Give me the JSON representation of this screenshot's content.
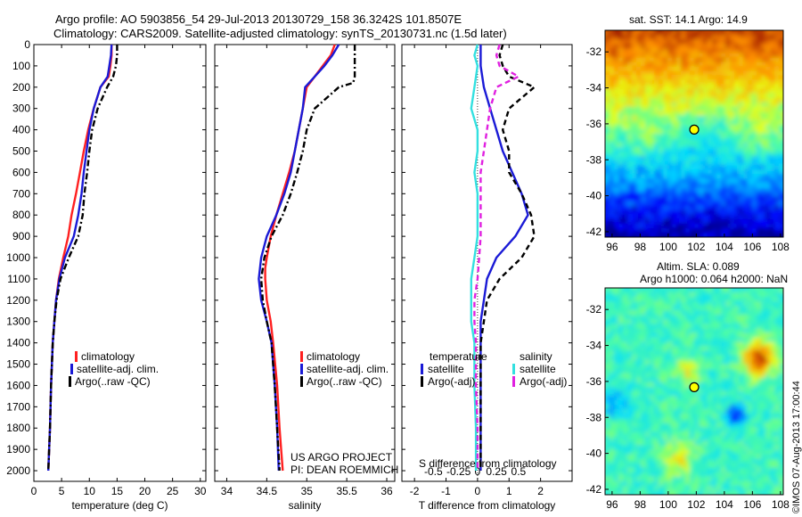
{
  "header": {
    "line1": "Argo profile: AO 5903856_54 29-Jul-2013 20130729_158 36.3242S 101.8507E",
    "line2": "Climatology: CARS2009. Satellite-adjusted climatology: synTS_20130731.nc (1.5d later)"
  },
  "colors": {
    "clim": "#ff2020",
    "sat": "#1a1ad6",
    "argo": "#000000",
    "sat_s": "#33e0e0",
    "argo_s": "#e020e0"
  },
  "chart_data": [
    {
      "type": "line",
      "xlabel": "temperature (deg C)",
      "xlim": [
        0,
        31
      ],
      "xticks": [
        0,
        5,
        10,
        15,
        20,
        25,
        30
      ],
      "ylim": [
        2050,
        0
      ],
      "yticks": [
        0,
        100,
        200,
        300,
        400,
        500,
        600,
        700,
        800,
        900,
        1000,
        1100,
        1200,
        1300,
        1400,
        1500,
        1600,
        1700,
        1800,
        1900,
        2000
      ],
      "legend": [
        "climatology",
        "satellite-adj. clim.",
        "Argo(..raw -QC)"
      ],
      "series": [
        {
          "name": "climatology",
          "style": "solid",
          "color": "clim",
          "y": [
            0,
            50,
            100,
            150,
            200,
            300,
            400,
            500,
            600,
            700,
            800,
            900,
            1000,
            1100,
            1200,
            1300,
            1400,
            1600,
            1800,
            2000
          ],
          "x": [
            14.0,
            14.0,
            13.8,
            13.5,
            12.0,
            10.8,
            9.8,
            9.0,
            8.3,
            7.6,
            6.8,
            6.2,
            5.3,
            4.5,
            4.0,
            3.7,
            3.4,
            3.1,
            2.9,
            2.6
          ]
        },
        {
          "name": "satellite-adj. clim.",
          "style": "solid",
          "color": "sat",
          "y": [
            0,
            50,
            100,
            150,
            200,
            300,
            400,
            500,
            600,
            700,
            800,
            900,
            1000,
            1100,
            1200,
            1300,
            1400,
            1600,
            1800,
            2000
          ],
          "x": [
            14.0,
            13.9,
            13.6,
            13.3,
            12.0,
            10.8,
            10.0,
            9.5,
            9.0,
            8.6,
            8.0,
            7.2,
            5.6,
            4.6,
            4.0,
            3.7,
            3.4,
            3.1,
            2.9,
            2.6
          ]
        },
        {
          "name": "Argo(..raw -QC)",
          "style": "dashdot",
          "color": "argo",
          "y": [
            0,
            50,
            100,
            150,
            200,
            300,
            400,
            500,
            600,
            700,
            800,
            900,
            1000,
            1100,
            1200,
            1300,
            1400,
            1600,
            1800,
            2000
          ],
          "x": [
            15.0,
            15.0,
            14.8,
            14.3,
            13.2,
            11.5,
            10.5,
            10.0,
            9.6,
            9.1,
            8.8,
            8.0,
            6.3,
            4.8,
            4.1,
            3.7,
            3.4,
            3.1,
            2.9,
            2.6
          ]
        }
      ]
    },
    {
      "type": "line",
      "xlabel": "salinity",
      "xlim": [
        33.85,
        36.1
      ],
      "xticks": [
        34,
        34.5,
        35,
        35.5,
        36
      ],
      "ylim": [
        2050,
        0
      ],
      "legend": [
        "climatology",
        "satellite-adj. clim.",
        "Argo(..raw -QC)"
      ],
      "annotation": [
        "US ARGO PROJECT",
        "PI: DEAN ROEMMICH"
      ],
      "series": [
        {
          "name": "climatology",
          "style": "solid",
          "color": "clim",
          "y": [
            0,
            50,
            100,
            150,
            200,
            300,
            400,
            500,
            600,
            700,
            800,
            900,
            1000,
            1050,
            1100,
            1200,
            1300,
            1400,
            1600,
            1800,
            2000
          ],
          "x": [
            35.35,
            35.3,
            35.2,
            35.1,
            35.0,
            34.95,
            34.9,
            34.85,
            34.78,
            34.7,
            34.62,
            34.55,
            34.5,
            34.48,
            34.48,
            34.5,
            34.55,
            34.58,
            34.63,
            34.66,
            34.7
          ]
        },
        {
          "name": "satellite-adj. clim.",
          "style": "solid",
          "color": "sat",
          "y": [
            0,
            50,
            100,
            150,
            200,
            300,
            400,
            500,
            600,
            700,
            800,
            900,
            1000,
            1100,
            1200,
            1300,
            1400,
            1600,
            1800,
            2000
          ],
          "x": [
            35.4,
            35.32,
            35.22,
            35.1,
            34.98,
            34.95,
            34.9,
            34.85,
            34.8,
            34.72,
            34.62,
            34.5,
            34.43,
            34.4,
            34.43,
            34.5,
            34.56,
            34.6,
            34.63,
            34.65
          ]
        },
        {
          "name": "Argo(..raw -QC)",
          "style": "dashdot",
          "color": "argo",
          "y": [
            0,
            50,
            100,
            150,
            180,
            200,
            300,
            400,
            500,
            600,
            700,
            800,
            900,
            1000,
            1100,
            1200,
            1300,
            1400,
            1600,
            1800,
            2000
          ],
          "x": [
            35.6,
            35.6,
            35.6,
            35.6,
            35.58,
            35.4,
            35.1,
            35.0,
            34.95,
            34.88,
            34.8,
            34.7,
            34.56,
            34.47,
            34.43,
            34.45,
            34.5,
            34.56,
            34.6,
            34.63,
            34.66
          ]
        }
      ]
    },
    {
      "type": "line",
      "xlabel": "T difference from climatology",
      "xlabel2": "S difference from climatology",
      "xlim": [
        -2.4,
        3.0
      ],
      "xticks": [
        -2,
        -1,
        0,
        1,
        2
      ],
      "xticks2": [
        {
          "v": -1.4,
          "label": "-0.5"
        },
        {
          "v": -0.6,
          "label": "-0.25"
        },
        {
          "v": 0,
          "label": "0"
        },
        {
          "v": 0.6,
          "label": "0.25"
        },
        {
          "v": 1.3,
          "label": "0.5"
        }
      ],
      "ylim": [
        2050,
        0
      ],
      "legend_groups": [
        {
          "title": "temperature",
          "items": [
            "satellite",
            "Argo(-adj)"
          ]
        },
        {
          "title": "salinity",
          "items": [
            "satellite",
            "Argo(-adj)"
          ]
        }
      ],
      "series": [
        {
          "name": "T satellite",
          "style": "solid",
          "color": "sat",
          "y": [
            0,
            100,
            200,
            300,
            400,
            500,
            600,
            700,
            800,
            900,
            1000,
            1100,
            1200,
            1300,
            1400,
            1600,
            1800,
            2000
          ],
          "x": [
            0.1,
            0.1,
            0.2,
            0.4,
            0.6,
            0.8,
            1.1,
            1.4,
            1.6,
            1.2,
            0.6,
            0.3,
            0.2,
            0.1,
            0.1,
            0.1,
            0.1,
            0.1
          ]
        },
        {
          "name": "T Argo(-adj)",
          "style": "dash",
          "color": "argo",
          "y": [
            0,
            50,
            100,
            150,
            200,
            300,
            400,
            500,
            600,
            700,
            800,
            900,
            1000,
            1100,
            1200,
            1300,
            1400,
            1600,
            1800,
            2000
          ],
          "x": [
            0.8,
            0.7,
            0.8,
            1.0,
            1.8,
            1.0,
            0.8,
            1.0,
            1.0,
            1.4,
            1.7,
            1.8,
            1.4,
            0.7,
            0.3,
            0.2,
            0.1,
            0.1,
            0.1,
            0.1
          ]
        },
        {
          "name": "S satellite",
          "style": "solid",
          "color": "sat_s",
          "y": [
            0,
            50,
            100,
            200,
            300,
            400,
            500,
            600,
            700,
            800,
            900,
            1000,
            1100,
            1200,
            1300,
            1400,
            1600,
            1800,
            2000
          ],
          "x": [
            0.0,
            -0.1,
            0.0,
            -0.1,
            -0.2,
            0.0,
            0.0,
            -0.1,
            0.0,
            0.0,
            0.0,
            -0.1,
            -0.2,
            -0.2,
            -0.2,
            -0.1,
            -0.1,
            -0.05,
            -0.05
          ]
        },
        {
          "name": "S Argo(-adj)",
          "style": "dash",
          "color": "argo_s",
          "y": [
            0,
            50,
            100,
            150,
            200,
            300,
            400,
            500,
            600,
            700,
            800,
            900,
            1000,
            1100,
            1200,
            1300,
            1400,
            1600,
            1800,
            2000
          ],
          "x": [
            0.7,
            0.6,
            0.7,
            1.3,
            0.6,
            0.4,
            0.3,
            0.2,
            0.1,
            0.1,
            0.1,
            0.1,
            0.05,
            0.0,
            -0.1,
            -0.1,
            -0.05,
            -0.05,
            0.0,
            0.0
          ]
        }
      ]
    },
    {
      "type": "heatmap",
      "title": "sat. SST: 14.1  Argo: 14.9",
      "xlim": [
        95.5,
        108.2
      ],
      "ylim": [
        -42.3,
        -30.8
      ],
      "xticks": [
        96,
        98,
        100,
        102,
        104,
        106,
        108
      ],
      "yticks": [
        -32,
        -34,
        -36,
        -38,
        -40,
        -42
      ],
      "marker": {
        "lon": 101.85,
        "lat": -36.32
      }
    },
    {
      "type": "heatmap",
      "title1": "Altim. SLA: 0.089",
      "title2": "Argo h1000: 0.064 h2000: NaN",
      "xlim": [
        95.5,
        108.2
      ],
      "ylim": [
        -42.3,
        -30.8
      ],
      "xticks": [
        96,
        98,
        100,
        102,
        104,
        106,
        108
      ],
      "yticks": [
        -32,
        -34,
        -36,
        -38,
        -40,
        -42
      ],
      "marker": {
        "lon": 101.85,
        "lat": -36.32
      }
    }
  ],
  "footer": {
    "stamp": "©IMOS 07-Aug-2013 17:00:44"
  }
}
